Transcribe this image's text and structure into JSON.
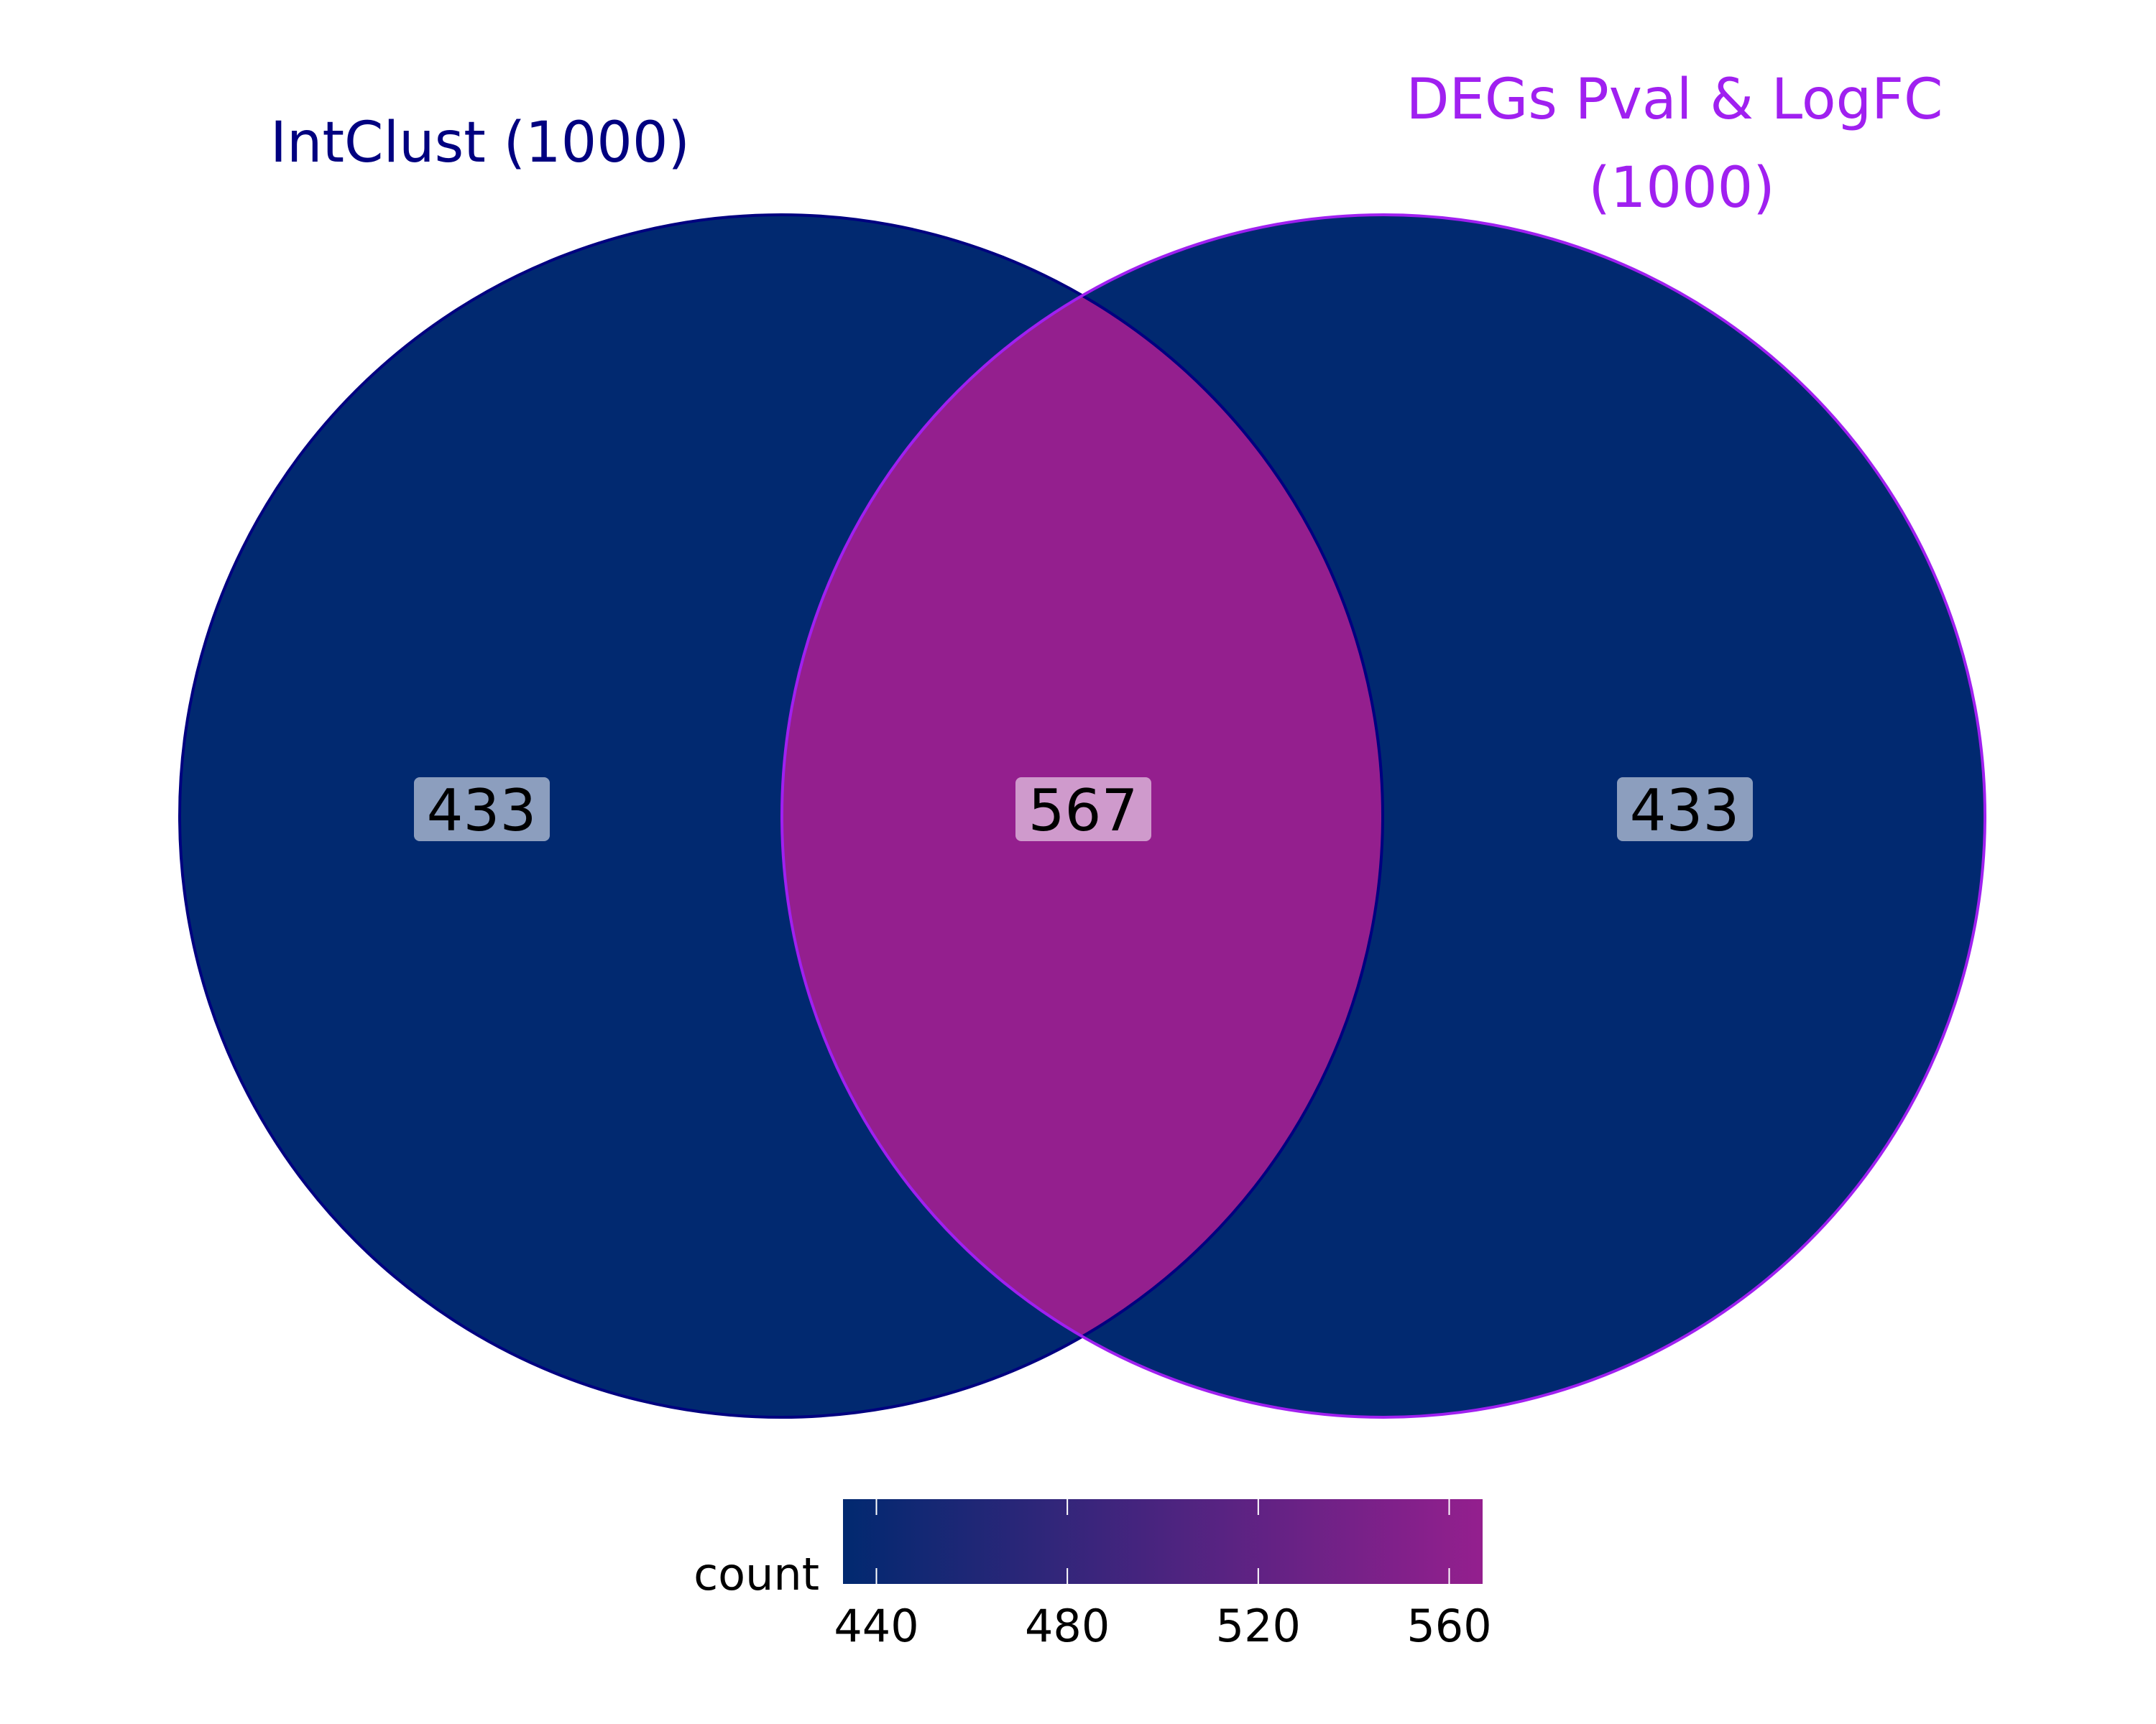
{
  "chart_data": {
    "type": "venn",
    "sets": [
      {
        "name": "IntClust (1000)",
        "size": 1000,
        "label_color": "#000080",
        "outline_color": "#000080"
      },
      {
        "name_lines": [
          "DEGs Pval & LogFC",
          "(1000)"
        ],
        "size": 1000,
        "label_color": "#A020F0",
        "outline_color": "#A020F0"
      }
    ],
    "regions": [
      {
        "id": "left-only",
        "count": "433",
        "value": 433
      },
      {
        "id": "intersection",
        "count": "567",
        "value": 567
      },
      {
        "id": "right-only",
        "count": "433",
        "value": 433
      }
    ],
    "legend": {
      "title": "count",
      "min": 433,
      "max": 567,
      "low_color": "#012970",
      "high_color": "#941F8E",
      "ticks": [
        "440",
        "480",
        "520",
        "560"
      ],
      "tick_values": [
        440,
        480,
        520,
        560
      ],
      "placement": "bottom"
    }
  }
}
